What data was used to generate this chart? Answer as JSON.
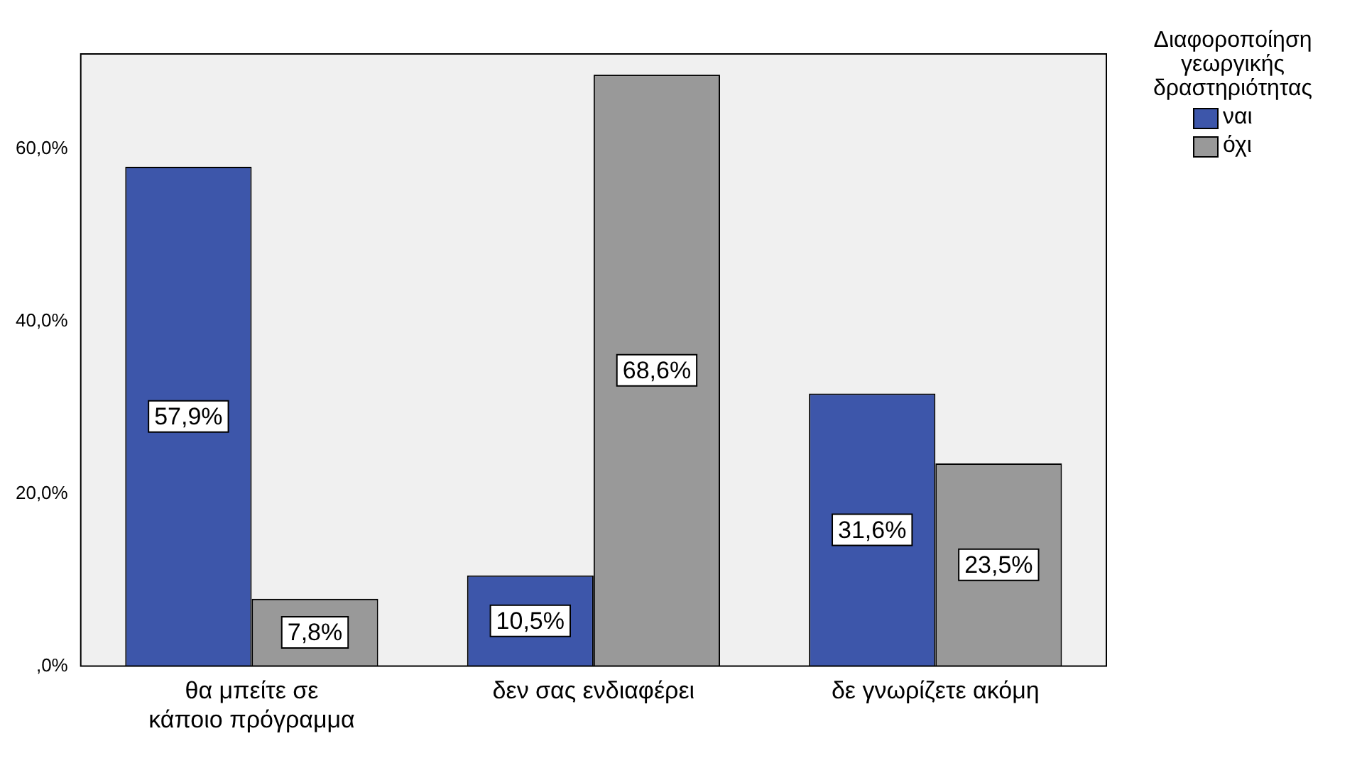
{
  "chart_data": {
    "type": "bar",
    "legend_title": "Διαφοροποίηση γεωργικής δραστηριότητας",
    "categories": [
      "θα μπείτε σε κάποιο πρόγραμμα",
      "δεν σας ενδιαφέρει",
      "δε γνωρίζετε ακόμη"
    ],
    "series": [
      {
        "name": "ναι",
        "color": "#3d56aa",
        "values": [
          57.9,
          10.5,
          31.6
        ],
        "value_labels": [
          "57,9%",
          "10,5%",
          "31,6%"
        ]
      },
      {
        "name": "όχι",
        "color": "#999999",
        "values": [
          7.8,
          68.6,
          23.5
        ],
        "value_labels": [
          "7,8%",
          "68,6%",
          "23,5%"
        ]
      }
    ],
    "ylim": [
      0,
      71
    ],
    "yticks": [
      {
        "value": 0,
        "label": ",0%"
      },
      {
        "value": 20,
        "label": "20,0%"
      },
      {
        "value": 40,
        "label": "40,0%"
      },
      {
        "value": 60,
        "label": "60,0%"
      }
    ],
    "grid": false,
    "legend": "top right"
  }
}
